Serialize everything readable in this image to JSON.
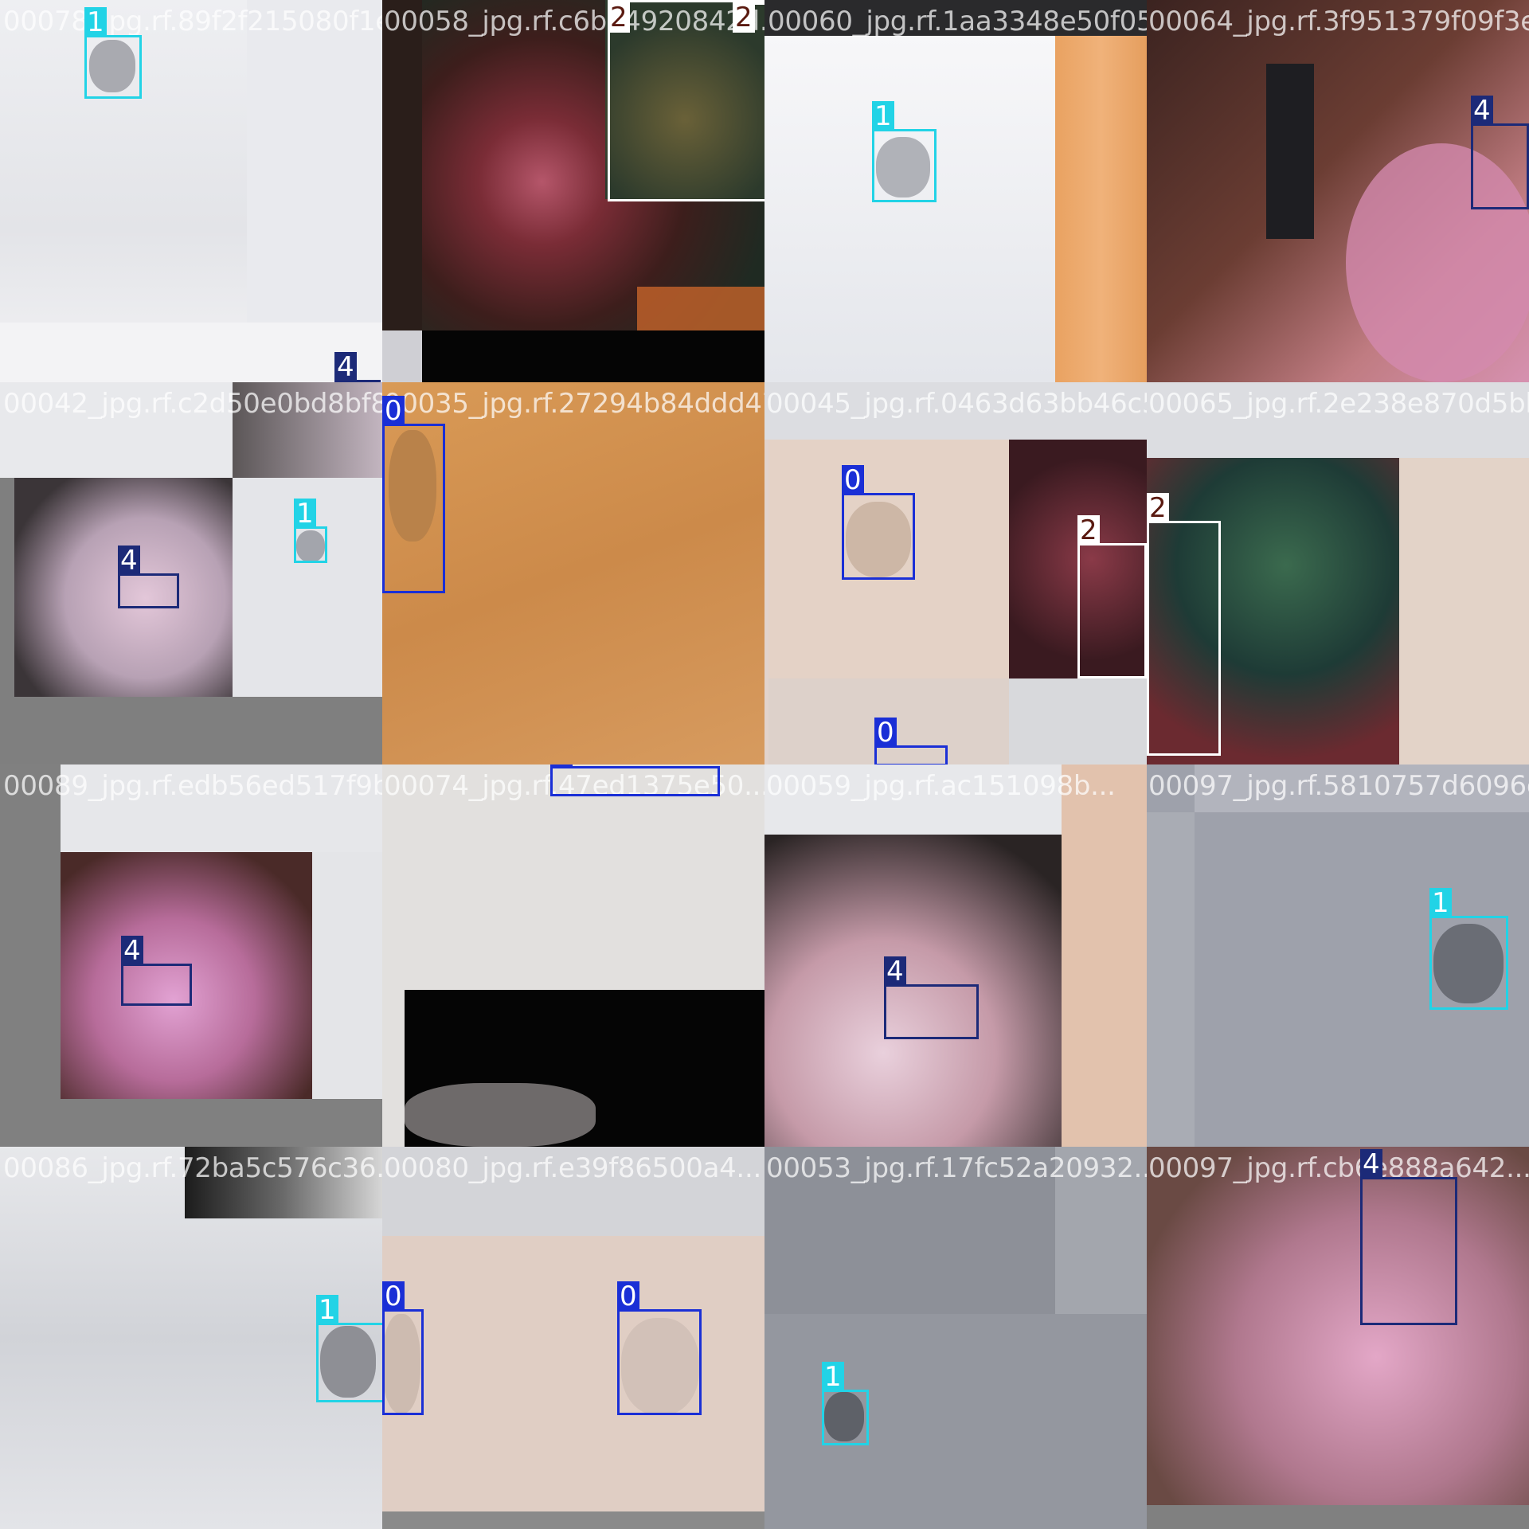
{
  "mosaic": {
    "tiles": [
      {
        "filename": "00078_jpg.rf.89f2f215080f1e..."
      },
      {
        "filename": "00058_jpg.rf.c6b04920842d..."
      },
      {
        "filename": "00060_jpg.rf.1aa3348e50f054..."
      },
      {
        "filename": "00064_jpg.rf.3f951379f09f3eb..."
      },
      {
        "filename": "00042_jpg.rf.c2d50e0bd8bf8..."
      },
      {
        "filename": "00035_jpg.rf.27294b84ddd470ea..."
      },
      {
        "filename": "00045_jpg.rf.0463d63bb46c5..."
      },
      {
        "filename": "00065_jpg.rf.2e238e870d5bb0..."
      },
      {
        "filename": "00089_jpg.rf.edb56ed517f9b..."
      },
      {
        "filename": "00074_jpg.rf.47ed1375e50..."
      },
      {
        "filename": "00059_jpg.rf.ac151098b..."
      },
      {
        "filename": "00097_jpg.rf.5810757d6096ed..."
      },
      {
        "filename": "00086_jpg.rf.72ba5c576c36..."
      },
      {
        "filename": "00080_jpg.rf.e39f86500a4..."
      },
      {
        "filename": "00053_jpg.rf.17fc52a20932..."
      },
      {
        "filename": "00097_jpg.rf.cb6e888a642..."
      }
    ],
    "class_colors": {
      "0": "#1a2fd6",
      "1": "#22d3e6",
      "2": "#ffffff",
      "4": "#1c2a78"
    },
    "box_labels": {
      "t0a": "1",
      "t0b": "4",
      "t1a": "2",
      "t1b": "2",
      "t2a": "1",
      "t3a": "4",
      "t4a": "4",
      "t4b": "1",
      "t5a": "0",
      "t6a": "0",
      "t6b": "2",
      "t6c": "0",
      "t7a": "2",
      "t8a": "4",
      "t9a": "0",
      "t10a": "4",
      "t11a": "1",
      "t12a": "1",
      "t13a": "0",
      "t13b": "0",
      "t14a": "1",
      "t15a": "4"
    }
  }
}
